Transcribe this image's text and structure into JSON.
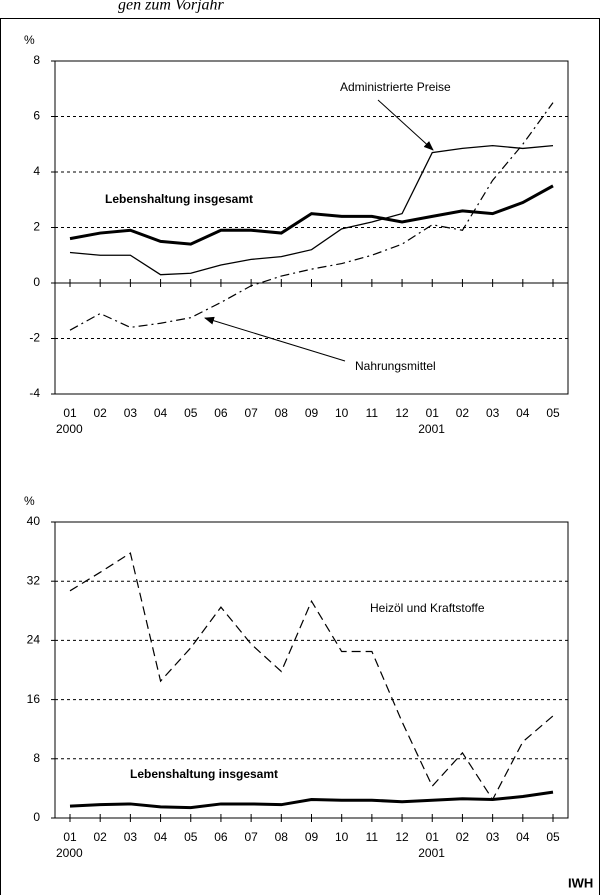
{
  "header": {
    "title": "gen zum Vorjahr"
  },
  "footer": {
    "source": "IWH"
  },
  "chart_data": [
    {
      "type": "line",
      "y_unit": "%",
      "categories": [
        "01",
        "02",
        "03",
        "04",
        "05",
        "06",
        "07",
        "08",
        "09",
        "10",
        "11",
        "12",
        "01",
        "02",
        "03",
        "04",
        "05"
      ],
      "year_labels": [
        "2000",
        "2001"
      ],
      "ylim": [
        -4,
        8
      ],
      "yticks": [
        -4,
        -2,
        0,
        2,
        4,
        6,
        8
      ],
      "grid": true,
      "series": [
        {
          "name": "Lebenshaltung insgesamt",
          "color": "#000000",
          "dash": "solid",
          "width": 3,
          "values": [
            1.6,
            1.8,
            1.9,
            1.5,
            1.4,
            1.9,
            1.9,
            1.8,
            2.5,
            2.4,
            2.4,
            2.2,
            2.4,
            2.6,
            2.5,
            2.9,
            3.5
          ]
        },
        {
          "name": "Administrierte Preise",
          "color": "#000000",
          "dash": "solid",
          "width": 1.3,
          "values": [
            1.1,
            1.0,
            1.0,
            0.3,
            0.35,
            0.65,
            0.85,
            0.95,
            1.2,
            1.95,
            2.2,
            2.5,
            4.7,
            4.85,
            4.95,
            4.85,
            4.95
          ]
        },
        {
          "name": "Nahrungsmittel",
          "color": "#000000",
          "dash": "dashdot",
          "width": 1.2,
          "values": [
            -1.7,
            -1.1,
            -1.6,
            -1.45,
            -1.25,
            -0.7,
            -0.1,
            0.25,
            0.5,
            0.7,
            1.0,
            1.4,
            2.1,
            1.9,
            3.7,
            5.0,
            6.5
          ]
        }
      ]
    },
    {
      "type": "line",
      "y_unit": "%",
      "categories": [
        "01",
        "02",
        "03",
        "04",
        "05",
        "06",
        "07",
        "08",
        "09",
        "10",
        "11",
        "12",
        "01",
        "02",
        "03",
        "04",
        "05"
      ],
      "year_labels": [
        "2000",
        "2001"
      ],
      "ylim": [
        0,
        40
      ],
      "yticks": [
        0,
        8,
        16,
        24,
        32,
        40
      ],
      "grid": true,
      "series": [
        {
          "name": "Heizöl und Kraftstoffe",
          "color": "#000000",
          "dash": "dashed",
          "width": 1.2,
          "values": [
            30.7,
            33.2,
            35.8,
            18.5,
            23.0,
            28.5,
            23.5,
            19.8,
            29.3,
            22.5,
            22.5,
            13.0,
            4.3,
            8.8,
            2.5,
            10.3,
            13.8
          ]
        },
        {
          "name": "Lebenshaltung insgesamt",
          "color": "#000000",
          "dash": "solid",
          "width": 3,
          "values": [
            1.6,
            1.8,
            1.9,
            1.5,
            1.4,
            1.9,
            1.9,
            1.8,
            2.5,
            2.4,
            2.4,
            2.2,
            2.4,
            2.6,
            2.5,
            2.9,
            3.5
          ]
        }
      ]
    }
  ]
}
